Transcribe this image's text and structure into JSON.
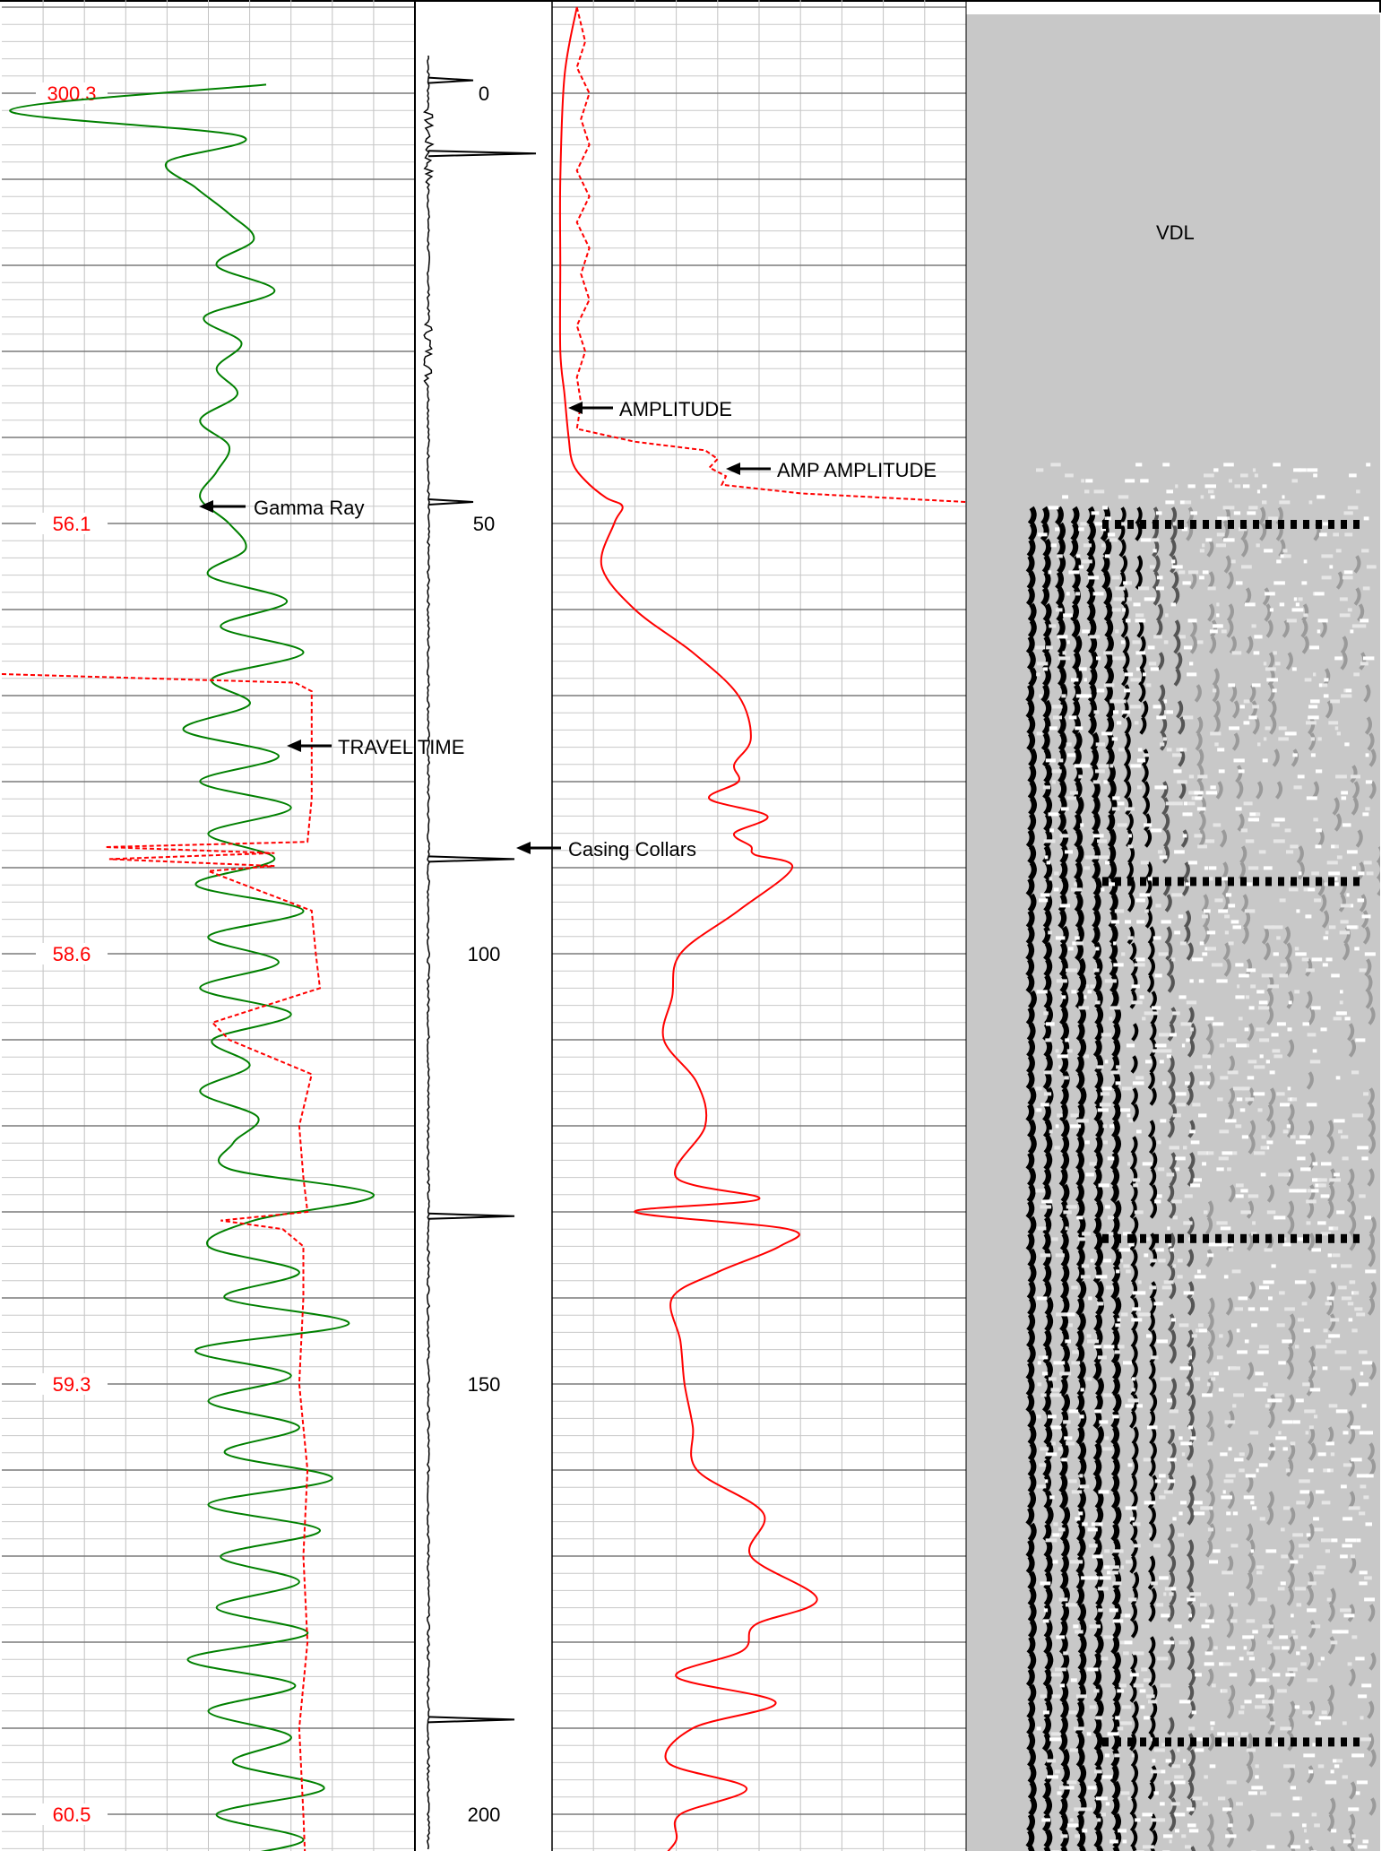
{
  "chart_data": {
    "type": "line",
    "title": "",
    "depth_scale": {
      "ticks": [
        0,
        50,
        100,
        150,
        200
      ],
      "range": [
        -10,
        212
      ]
    },
    "travel_time_scale_labels": [
      "300.3",
      "56.1",
      "58.6",
      "59.3",
      "60.5"
    ],
    "annotations": {
      "gamma_ray": "Gamma Ray",
      "travel_time": "TRAVEL TIME",
      "casing_collars": "Casing Collars",
      "amplitude": "AMPLITUDE",
      "amp_amplitude": "AMP AMPLITUDE",
      "vdl": "VDL"
    },
    "casing_collar_depths": [
      -1.5,
      7,
      47.5,
      89,
      130.5,
      189
    ],
    "series": [
      {
        "key": "gamma_ray",
        "color": "#008000",
        "depth": [
          -1,
          2,
          5,
          8,
          11,
          14,
          17,
          20,
          23,
          26,
          29,
          32,
          35,
          38,
          41,
          44,
          47,
          50,
          53,
          56,
          59,
          62,
          65,
          68,
          71,
          74,
          77,
          80,
          83,
          86,
          89,
          92,
          95,
          98,
          101,
          104,
          107,
          110,
          113,
          116,
          119,
          122,
          125,
          128,
          131,
          134,
          137,
          140,
          143,
          146,
          149,
          152,
          155,
          158,
          161,
          164,
          167,
          170,
          173,
          176,
          179,
          182,
          185,
          188,
          191,
          194,
          197,
          200,
          203,
          206,
          209,
          212
        ],
        "value": [
          0.64,
          0.02,
          0.58,
          0.4,
          0.47,
          0.55,
          0.61,
          0.52,
          0.66,
          0.49,
          0.58,
          0.52,
          0.57,
          0.48,
          0.55,
          0.52,
          0.48,
          0.55,
          0.59,
          0.5,
          0.69,
          0.53,
          0.73,
          0.51,
          0.6,
          0.44,
          0.67,
          0.48,
          0.7,
          0.5,
          0.66,
          0.47,
          0.73,
          0.5,
          0.67,
          0.48,
          0.7,
          0.51,
          0.6,
          0.48,
          0.62,
          0.56,
          0.55,
          0.9,
          0.61,
          0.5,
          0.72,
          0.54,
          0.84,
          0.47,
          0.7,
          0.5,
          0.72,
          0.54,
          0.8,
          0.5,
          0.77,
          0.53,
          0.72,
          0.52,
          0.74,
          0.45,
          0.71,
          0.5,
          0.7,
          0.56,
          0.78,
          0.52,
          0.73,
          0.5,
          0.76,
          0.55
        ]
      },
      {
        "key": "travel_time",
        "color": "#ff0000",
        "dashed": true,
        "depth": [
          67.5,
          68.5,
          69.5,
          75,
          82,
          87,
          87.6,
          88.3,
          89,
          89.8,
          90.4,
          95,
          100,
          104,
          108,
          110,
          114,
          120,
          126,
          130,
          131,
          132,
          134,
          140,
          150,
          160,
          170,
          180,
          190,
          200,
          212
        ],
        "value": [
          0.0,
          0.71,
          0.75,
          0.75,
          0.75,
          0.74,
          0.25,
          0.66,
          0.26,
          0.66,
          0.5,
          0.75,
          0.76,
          0.77,
          0.51,
          0.55,
          0.75,
          0.72,
          0.73,
          0.74,
          0.53,
          0.68,
          0.73,
          0.73,
          0.72,
          0.74,
          0.73,
          0.74,
          0.72,
          0.73,
          0.74
        ]
      },
      {
        "key": "amplitude",
        "color": "#ff0000",
        "depth": [
          -10,
          -2,
          10,
          20,
          30,
          35,
          40,
          43,
          45,
          47,
          48,
          50,
          55,
          60,
          65,
          70,
          75,
          78,
          80,
          82,
          84,
          86,
          87.5,
          88.5,
          90,
          95,
          100,
          105,
          110,
          115,
          120,
          126,
          128.5,
          130,
          132,
          134,
          137,
          140,
          145,
          150,
          155,
          160,
          165,
          170,
          175,
          178,
          181,
          184,
          187,
          190,
          194,
          197,
          200,
          203,
          206,
          212
        ],
        "value": [
          0.06,
          0.03,
          0.02,
          0.02,
          0.02,
          0.03,
          0.04,
          0.05,
          0.08,
          0.13,
          0.17,
          0.15,
          0.12,
          0.2,
          0.34,
          0.45,
          0.48,
          0.44,
          0.45,
          0.38,
          0.52,
          0.44,
          0.48,
          0.49,
          0.58,
          0.45,
          0.31,
          0.29,
          0.27,
          0.35,
          0.37,
          0.3,
          0.5,
          0.2,
          0.57,
          0.55,
          0.4,
          0.29,
          0.31,
          0.32,
          0.34,
          0.35,
          0.51,
          0.48,
          0.64,
          0.49,
          0.46,
          0.3,
          0.54,
          0.34,
          0.28,
          0.47,
          0.31,
          0.3,
          0.27,
          0.34
        ]
      },
      {
        "key": "amp_amplitude",
        "color": "#ff0000",
        "dashed": true,
        "depth": [
          -10,
          -6,
          -3,
          0,
          3,
          6,
          9,
          12,
          15,
          18,
          21,
          24,
          27,
          30,
          33,
          36,
          39,
          40.5,
          41.5,
          42.5,
          43.5,
          44.5,
          45.5,
          46.5,
          47.5
        ],
        "value": [
          0.06,
          0.08,
          0.06,
          0.09,
          0.07,
          0.09,
          0.06,
          0.09,
          0.06,
          0.09,
          0.07,
          0.09,
          0.06,
          0.08,
          0.06,
          0.07,
          0.06,
          0.2,
          0.37,
          0.4,
          0.38,
          0.42,
          0.41,
          0.6,
          1.0
        ]
      }
    ],
    "casing_collar_signal": {
      "color": "#000000"
    },
    "vdl": {
      "start_depth": 44
    }
  }
}
